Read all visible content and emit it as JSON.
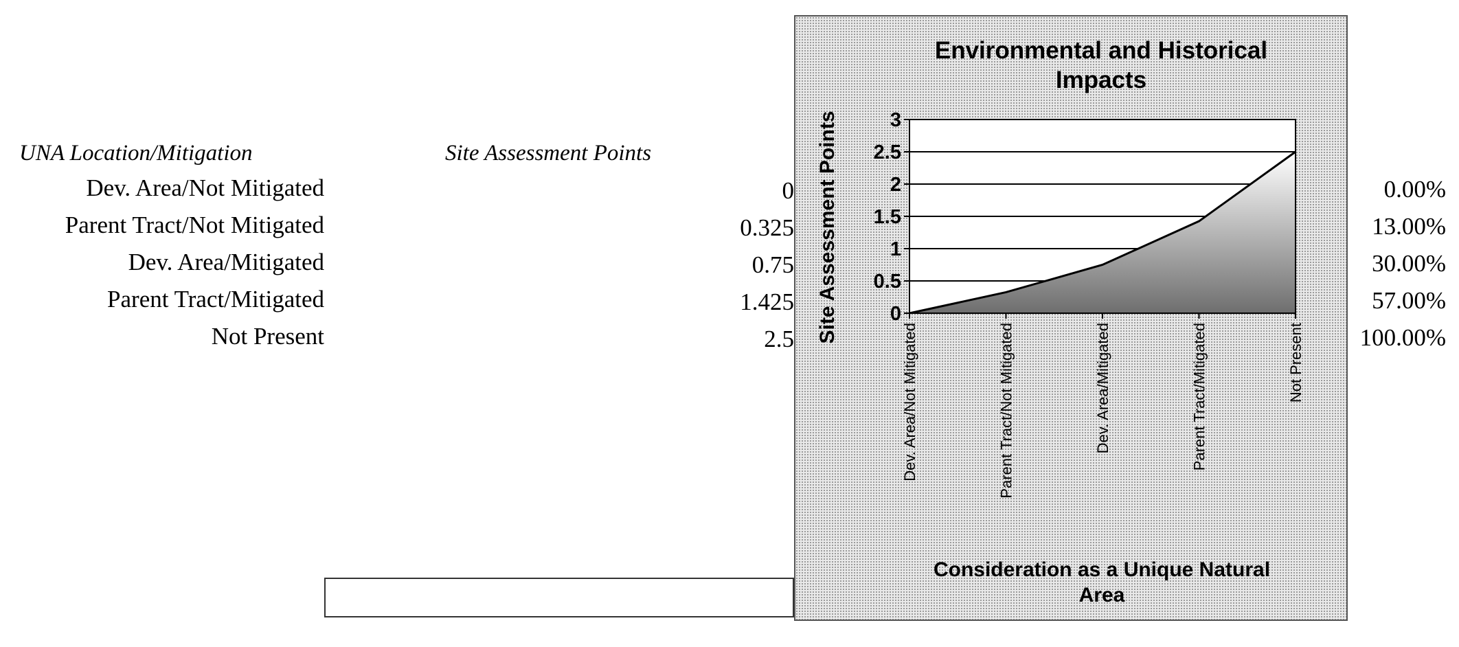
{
  "table": {
    "header_location": "UNA Location/Mitigation",
    "header_points": "Site Assessment Points",
    "rows": [
      {
        "label": "Dev. Area/Not Mitigated",
        "points": "0",
        "percent": "0.00%"
      },
      {
        "label": "Parent Tract/Not Mitigated",
        "points": "0.325",
        "percent": "13.00%"
      },
      {
        "label": "Dev. Area/Mitigated",
        "points": "0.75",
        "percent": "30.00%"
      },
      {
        "label": "Parent Tract/Mitigated",
        "points": "1.425",
        "percent": "57.00%"
      },
      {
        "label": "Not Present",
        "points": "2.5",
        "percent": "100.00%"
      }
    ]
  },
  "chart_data": {
    "type": "area",
    "title_lines": [
      "Environmental and Historical",
      "Impacts"
    ],
    "xlabel_lines": [
      "Consideration as a Unique Natural",
      "Area"
    ],
    "ylabel": "Site Assessment Points",
    "categories": [
      "Dev. Area/Not Mitigated",
      "Parent Tract/Not Mitigated",
      "Dev. Area/Mitigated",
      "Parent Tract/Mitigated",
      "Not Present"
    ],
    "values": [
      0,
      0.325,
      0.75,
      1.425,
      2.5
    ],
    "ylim": [
      0,
      3
    ],
    "yticks": [
      "0",
      "0.5",
      "1",
      "1.5",
      "2",
      "2.5",
      "3"
    ],
    "grid": true,
    "legend": "none"
  }
}
